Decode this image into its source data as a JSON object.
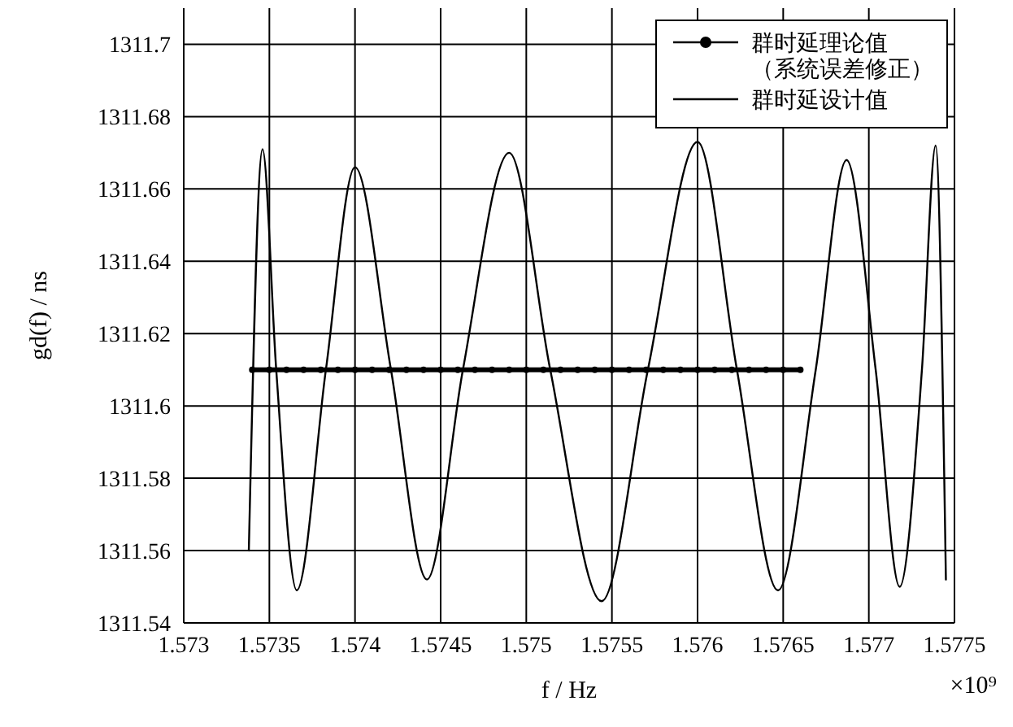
{
  "chart_data": {
    "type": "line",
    "xlabel": "f / Hz",
    "ylabel": "gd(f) / ns",
    "annotations": [
      "×10⁹"
    ],
    "xlim": [
      1.573,
      1.5775
    ],
    "xticks": [
      1.573,
      1.5735,
      1.574,
      1.5745,
      1.575,
      1.5755,
      1.576,
      1.5765,
      1.577,
      1.5775
    ],
    "ylim": [
      1311.54,
      1311.71
    ],
    "yticks": [
      1311.54,
      1311.56,
      1311.58,
      1311.6,
      1311.62,
      1311.64,
      1311.66,
      1311.68,
      1311.7
    ],
    "grid": true,
    "legend": "top right",
    "series": [
      {
        "name": "群时延理论值（系统误差修正）",
        "color": "#000000",
        "marker": "circle",
        "x": [
          1.5734,
          1.5735,
          1.5736,
          1.5737,
          1.5738,
          1.5739,
          1.574,
          1.5741,
          1.5742,
          1.5743,
          1.5744,
          1.5745,
          1.5746,
          1.5747,
          1.5748,
          1.5749,
          1.575,
          1.5751,
          1.5752,
          1.5753,
          1.5754,
          1.5755,
          1.5756,
          1.5757,
          1.5758,
          1.5759,
          1.576,
          1.5761,
          1.5762,
          1.5763,
          1.5764,
          1.5765,
          1.5766
        ],
        "values": [
          1311.61,
          1311.61,
          1311.61,
          1311.61,
          1311.61,
          1311.61,
          1311.61,
          1311.61,
          1311.61,
          1311.61,
          1311.61,
          1311.61,
          1311.61,
          1311.61,
          1311.61,
          1311.61,
          1311.61,
          1311.61,
          1311.61,
          1311.61,
          1311.61,
          1311.61,
          1311.61,
          1311.61,
          1311.61,
          1311.61,
          1311.61,
          1311.61,
          1311.61,
          1311.61,
          1311.61,
          1311.61,
          1311.61
        ]
      },
      {
        "name": "群时延设计值",
        "color": "#000000",
        "marker": "none",
        "x": [
          1.57338,
          1.57346,
          1.57354,
          1.57366,
          1.57383,
          1.574,
          1.57421,
          1.57442,
          1.57463,
          1.5749,
          1.57514,
          1.57544,
          1.57571,
          1.576,
          1.57623,
          1.57647,
          1.57669,
          1.57687,
          1.57704,
          1.57718,
          1.57731,
          1.57739,
          1.57745
        ],
        "values": [
          1311.56,
          1311.671,
          1311.61,
          1311.549,
          1311.61,
          1311.666,
          1311.61,
          1311.552,
          1311.61,
          1311.67,
          1311.61,
          1311.546,
          1311.61,
          1311.673,
          1311.61,
          1311.549,
          1311.61,
          1311.668,
          1311.61,
          1311.55,
          1311.61,
          1311.672,
          1311.552
        ]
      }
    ]
  }
}
